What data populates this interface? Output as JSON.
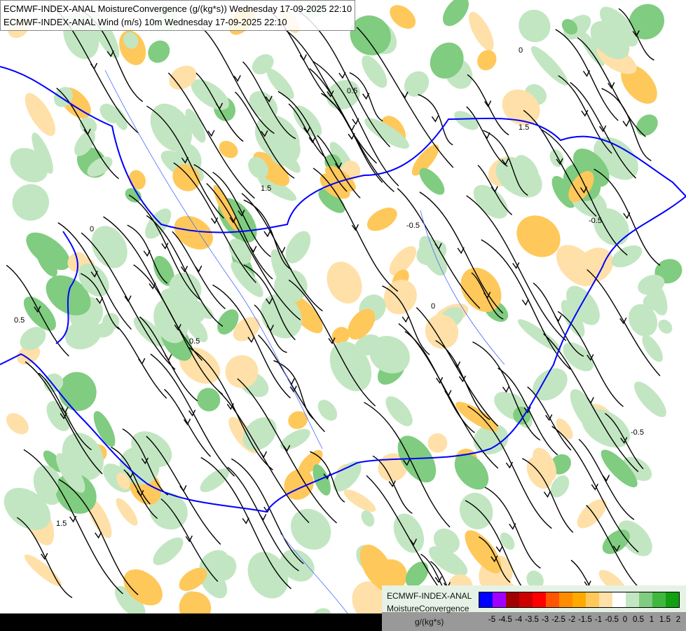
{
  "title": {
    "line1": "ECMWF-INDEX-ANAL MoistureConvergence (g/(kg*s)) Wednesday 17-09-2025 22:10",
    "line2": "ECMWF-INDEX-ANAL Wind (m/s) 10m Wednesday 17-09-2025 22:10"
  },
  "legend": {
    "model": "ECMWF-INDEX-ANAL",
    "variable": "MoistureConvergence",
    "unit": "g/(kg*s)",
    "colors": [
      "#0000ff",
      "#a000ff",
      "#a00000",
      "#cc0000",
      "#ff0000",
      "#ff5500",
      "#ff8c00",
      "#ffaa00",
      "#ffc85a",
      "#ffe0a8",
      "#ffffff",
      "#c2e6c2",
      "#80cc80",
      "#40b840",
      "#10a010"
    ],
    "ticks": [
      "-5",
      "-4.5",
      "-4",
      "-3.5",
      "-3",
      "-2.5",
      "-2",
      "-1.5",
      "-1",
      "-0.5",
      "0",
      "0.5",
      "1",
      "1.5",
      "2"
    ]
  },
  "map": {
    "contour_labels": [
      "0",
      "0.5",
      "1.5",
      "-0.5"
    ],
    "border_color": "#0000ff",
    "river_color": "#4a6bff",
    "streamline_color": "#000000"
  }
}
